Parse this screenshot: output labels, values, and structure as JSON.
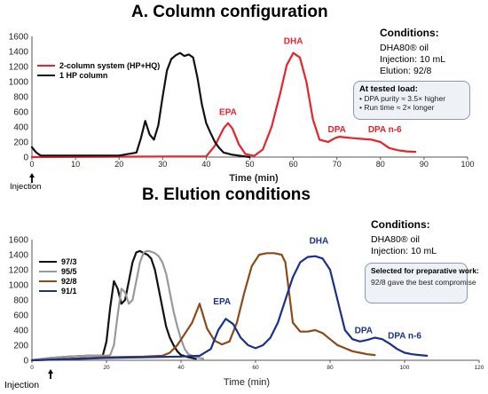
{
  "panel_a": {
    "title": "A. Column configuration",
    "conditions_title": "Conditions:",
    "conditions": [
      "DHA80® oil",
      "Injection: 10 mL",
      "Elution: 92/8"
    ],
    "note_title": "At tested load:",
    "note_lines": [
      "• DPA purity ≈ 3.5× higher",
      "• Run time ≈ 2× longer"
    ],
    "injection_label": "Injection"
  },
  "panel_b": {
    "title": "B. Elution conditions",
    "conditions_title": "Conditions:",
    "conditions": [
      "DHA80® oil",
      "Injection: 10 mL"
    ],
    "note_title": "Selected for preparative work:",
    "note_body": "92/8 gave the best compromise",
    "injection_label": "Injection"
  },
  "chart_data": [
    {
      "type": "line",
      "title": "A. Column configuration",
      "xlabel": "Time (min)",
      "ylabel": "",
      "xlim": [
        0,
        100
      ],
      "ylim": [
        0,
        1600
      ],
      "xticks": [
        0,
        10,
        20,
        30,
        40,
        50,
        60,
        70,
        80,
        90,
        100
      ],
      "yticks": [
        0,
        200,
        400,
        600,
        800,
        1000,
        1200,
        1400,
        1600
      ],
      "grid": false,
      "legend": "top-left",
      "series": [
        {
          "name": "2-column system (HP+HQ)",
          "color": "#e8232b",
          "x": [
            0,
            40,
            42,
            44,
            45,
            46,
            47.5,
            49,
            51,
            53,
            55,
            57,
            58.5,
            60,
            61.5,
            63,
            64.5,
            66,
            68,
            69.5,
            70.5,
            72,
            74,
            76,
            78,
            80,
            82,
            84,
            86,
            88
          ],
          "y": [
            0,
            10,
            150,
            380,
            450,
            380,
            170,
            40,
            15,
            100,
            400,
            850,
            1220,
            1380,
            1320,
            1000,
            500,
            230,
            200,
            250,
            270,
            260,
            250,
            240,
            230,
            200,
            120,
            90,
            75,
            70
          ]
        },
        {
          "name": "1 HP column",
          "color": "#111111",
          "x": [
            0,
            1,
            2,
            5,
            10,
            15,
            20,
            24,
            25,
            26,
            27,
            28,
            29,
            30,
            31,
            32,
            33,
            34,
            35,
            36,
            37,
            38,
            39,
            40,
            41,
            42,
            43,
            44,
            46,
            48,
            50
          ],
          "y": [
            130,
            60,
            20,
            20,
            20,
            20,
            20,
            60,
            250,
            480,
            300,
            230,
            420,
            800,
            1150,
            1300,
            1350,
            1380,
            1340,
            1360,
            1320,
            1050,
            700,
            450,
            320,
            200,
            120,
            60,
            30,
            15,
            0
          ]
        }
      ],
      "annotations": [
        "EPA",
        "DHA",
        "DPA",
        "DPA n-6"
      ]
    },
    {
      "type": "line",
      "title": "B. Elution conditions",
      "xlabel": "Time (min)",
      "ylabel": "",
      "xlim": [
        0,
        120
      ],
      "ylim": [
        0,
        1600
      ],
      "xticks": [
        0,
        20,
        40,
        60,
        80,
        100,
        120
      ],
      "yticks": [
        0,
        200,
        400,
        600,
        800,
        1000,
        1200,
        1400,
        1600
      ],
      "grid": false,
      "legend": "top-left",
      "series": [
        {
          "name": "97/3",
          "color": "#111111",
          "x": [
            0,
            5,
            10,
            15,
            19,
            20,
            21,
            22,
            23,
            24,
            25,
            26,
            27,
            28,
            29,
            30,
            31,
            32,
            33,
            34,
            35,
            36,
            37,
            38,
            39,
            40,
            42,
            44
          ],
          "y": [
            0,
            30,
            50,
            60,
            60,
            250,
            700,
            1050,
            950,
            750,
            800,
            1050,
            1300,
            1430,
            1450,
            1420,
            1400,
            1350,
            1200,
            950,
            700,
            450,
            300,
            200,
            120,
            70,
            40,
            20
          ]
        },
        {
          "name": "95/5",
          "color": "#999999",
          "x": [
            0,
            5,
            10,
            15,
            20,
            21,
            22,
            23,
            24,
            25,
            26,
            27,
            28,
            29,
            30,
            31,
            32,
            33,
            34,
            35,
            36,
            37,
            38,
            39,
            40,
            41,
            42,
            44,
            46
          ],
          "y": [
            0,
            30,
            50,
            60,
            60,
            70,
            200,
            600,
            950,
            900,
            750,
            800,
            1050,
            1300,
            1430,
            1450,
            1440,
            1420,
            1380,
            1300,
            1150,
            900,
            650,
            450,
            280,
            150,
            80,
            40,
            20
          ]
        },
        {
          "name": "92/8",
          "color": "#8b4a1a",
          "x": [
            0,
            10,
            20,
            30,
            35,
            37,
            39,
            41,
            43,
            45,
            47,
            49,
            51,
            53,
            55,
            57,
            59,
            61,
            63,
            65,
            67,
            68,
            69,
            70,
            72,
            74,
            76,
            78,
            80,
            82,
            84,
            86,
            88,
            90,
            92
          ],
          "y": [
            0,
            20,
            40,
            50,
            60,
            100,
            200,
            350,
            500,
            750,
            420,
            260,
            210,
            250,
            500,
            900,
            1250,
            1400,
            1420,
            1420,
            1400,
            1300,
            900,
            500,
            380,
            380,
            400,
            360,
            280,
            200,
            160,
            120,
            100,
            80,
            70
          ]
        },
        {
          "name": "91/1",
          "color": "#1c2f8a",
          "x": [
            0,
            20,
            40,
            45,
            48,
            50,
            52,
            54,
            56,
            58,
            60,
            62,
            64,
            66,
            68,
            70,
            72,
            74,
            76,
            78,
            80,
            82,
            84,
            86,
            88,
            90,
            92,
            94,
            96,
            98,
            100,
            102,
            104,
            106
          ],
          "y": [
            0,
            30,
            50,
            60,
            150,
            400,
            550,
            480,
            300,
            200,
            160,
            200,
            300,
            500,
            800,
            1100,
            1300,
            1370,
            1380,
            1350,
            1200,
            800,
            400,
            280,
            250,
            270,
            300,
            280,
            220,
            150,
            100,
            80,
            70,
            60
          ]
        }
      ],
      "annotations": [
        "EPA",
        "DHA",
        "DPA",
        "DPA n-6"
      ]
    }
  ],
  "colors": {
    "red": "#e8232b",
    "black": "#111111",
    "gray": "#999999",
    "brown": "#8b4a1a",
    "navy": "#1c2f8a",
    "note_bg": "#eef1f6"
  }
}
